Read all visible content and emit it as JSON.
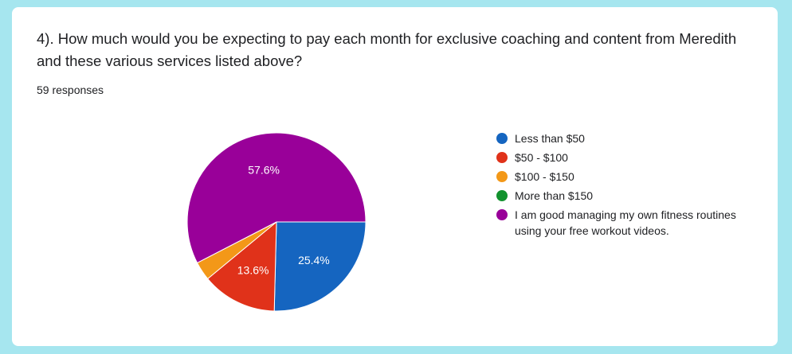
{
  "question": "4). How much would you be expecting to pay each month for exclusive coaching and content from Meredith and these various services listed above?",
  "responses": "59 responses",
  "chart_data": {
    "type": "pie",
    "categories": [
      "Less than $50",
      "$50 - $100",
      "$100 - $150",
      "More than $150",
      "I am good managing my own fitness routines using your free workout videos."
    ],
    "values": [
      25.4,
      13.6,
      3.4,
      0,
      57.6
    ],
    "labels": [
      "25.4%",
      "13.6%",
      "",
      "",
      "57.6%"
    ],
    "colors": [
      "#1565c0",
      "#e0321a",
      "#f39818",
      "#12922e",
      "#990099"
    ],
    "legend_position": "right"
  }
}
